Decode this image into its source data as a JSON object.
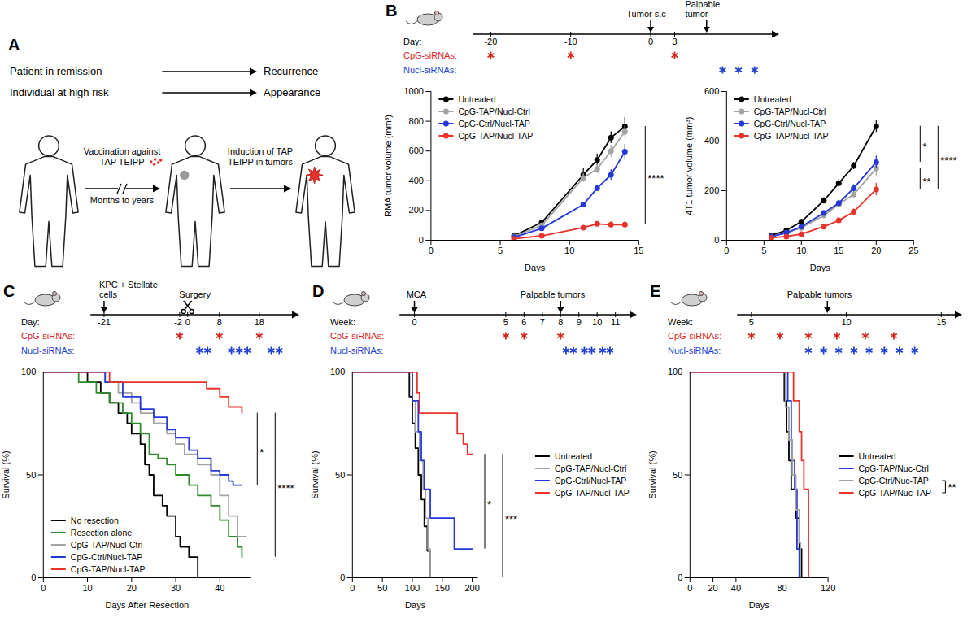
{
  "diagram": {
    "letter": "A",
    "transitions": [
      {
        "from": "Patient in remission",
        "to": "Recurrence"
      },
      {
        "from": "Individual at high risk",
        "to": "Appearance"
      }
    ],
    "steps": [
      "Vaccination against TAP TEIPP",
      "Induction of TAP TEIPP in tumors"
    ],
    "interval": "Months to years"
  },
  "timelines": [
    {
      "panel": "B",
      "unit": "Day:",
      "ticks": [
        -20,
        -10,
        0,
        3
      ],
      "events": [
        {
          "label": "Tumor s.c",
          "at": 0,
          "marker": "arrow"
        },
        {
          "label": "Palpable tumor",
          "at": 7,
          "marker": "arrow"
        }
      ],
      "rows": [
        {
          "label": "CpG-siRNAs:",
          "color": "#d7261e",
          "at": [
            -20,
            -10,
            3
          ]
        },
        {
          "label": "Nucl-siRNAs:",
          "color": "#1f3fd1",
          "at": [
            9,
            11,
            13
          ]
        }
      ]
    },
    {
      "panel": "C",
      "unit": "Day:",
      "ticks": [
        -21,
        -2,
        0,
        8,
        18
      ],
      "events": [
        {
          "label": "KPC + Stellate cells",
          "at": -21,
          "marker": "arrow"
        },
        {
          "label": "Surgery",
          "at": 0,
          "marker": "scissors"
        }
      ],
      "rows": [
        {
          "label": "CpG-siRNAs:",
          "color": "#d7261e",
          "at": [
            -2,
            8,
            18
          ]
        },
        {
          "label": "Nucl-siRNAs:",
          "color": "#1f3fd1",
          "at": [
            3,
            5,
            11,
            13,
            15,
            21,
            23
          ]
        }
      ]
    },
    {
      "panel": "D",
      "unit": "Week:",
      "ticks": [
        0,
        5,
        6,
        7,
        8,
        9,
        10,
        11
      ],
      "events": [
        {
          "label": "MCA",
          "at": 0,
          "marker": "arrow"
        },
        {
          "label": "Palpable tumors",
          "at": 8,
          "marker": "arrow"
        }
      ],
      "rows": [
        {
          "label": "CpG-siRNAs:",
          "color": "#d7261e",
          "at": [
            5,
            6,
            8
          ]
        },
        {
          "label": "Nucl-siRNAs:",
          "color": "#1f3fd1",
          "at": [
            8.3,
            8.7,
            9.3,
            9.7,
            10.3,
            10.7
          ]
        }
      ]
    },
    {
      "panel": "E",
      "unit": "Week:",
      "ticks": [
        5,
        10,
        15
      ],
      "events": [
        {
          "label": "Palpable tumors",
          "at": 9,
          "marker": "arrow"
        }
      ],
      "rows": [
        {
          "label": "CpG-siRNAs:",
          "color": "#d7261e",
          "at": [
            5,
            6.5,
            8,
            9.5,
            11,
            12.5
          ]
        },
        {
          "label": "Nucl-siRNAs:",
          "color": "#1f3fd1",
          "at": [
            8,
            8.8,
            9.6,
            10.4,
            11.2,
            12,
            12.8,
            13.6
          ]
        }
      ]
    }
  ],
  "chart_data": [
    {
      "type": "line",
      "xlabel": "Days",
      "ylabel": "RMA tumor volume (mm³)",
      "xlim": [
        0,
        15
      ],
      "xticks": [
        0,
        5,
        10,
        15
      ],
      "ylim": [
        0,
        1000
      ],
      "yticks": [
        0,
        200,
        400,
        600,
        800,
        1000
      ],
      "grid": false,
      "legend": "top-left",
      "marker": "circle",
      "x": [
        6,
        8,
        11,
        12,
        13,
        14
      ],
      "series": [
        {
          "name": "Untreated",
          "color": "#000000",
          "values": [
            30,
            120,
            440,
            540,
            690,
            765
          ],
          "errors": [
            5,
            15,
            45,
            40,
            40,
            60
          ]
        },
        {
          "name": "CpG-TAP/Nucl-Ctrl",
          "color": "#a3a3a3",
          "values": [
            25,
            100,
            420,
            480,
            600,
            730
          ],
          "errors": [
            5,
            10,
            30,
            30,
            40,
            40
          ]
        },
        {
          "name": "CpG-Ctrl/Nucl-TAP",
          "color": "#2338d6",
          "values": [
            20,
            80,
            240,
            350,
            440,
            595
          ],
          "errors": [
            4,
            10,
            15,
            20,
            35,
            50
          ]
        },
        {
          "name": "CpG-TAP/Nucl-TAP",
          "color": "#e8332a",
          "values": [
            10,
            30,
            85,
            110,
            105,
            105
          ],
          "errors": [
            3,
            5,
            10,
            12,
            20,
            20
          ]
        }
      ],
      "annotations": [
        {
          "text": "****",
          "series": [
            "Untreated",
            "CpG-TAP/Nucl-TAP"
          ]
        }
      ]
    },
    {
      "type": "line",
      "xlabel": "Days",
      "ylabel": "4T1 tumor volume (mm³)",
      "xlim": [
        0,
        25
      ],
      "xticks": [
        0,
        5,
        10,
        15,
        20,
        25
      ],
      "ylim": [
        0,
        600
      ],
      "yticks": [
        0,
        200,
        400,
        600
      ],
      "grid": false,
      "legend": "top-left",
      "marker": "circle",
      "x": [
        6,
        8,
        10,
        13,
        15,
        17,
        20
      ],
      "series": [
        {
          "name": "Untreated",
          "color": "#000000",
          "values": [
            20,
            40,
            75,
            160,
            230,
            300,
            460
          ],
          "errors": [
            3,
            5,
            8,
            12,
            15,
            15,
            25
          ]
        },
        {
          "name": "CpG-TAP/Nucl-Ctrl",
          "color": "#a3a3a3",
          "values": [
            15,
            30,
            50,
            100,
            145,
            185,
            290
          ],
          "errors": [
            3,
            4,
            6,
            10,
            12,
            15,
            30
          ]
        },
        {
          "name": "CpG-Ctrl/Nucl-TAP",
          "color": "#2338d6",
          "values": [
            15,
            30,
            55,
            110,
            150,
            210,
            315
          ],
          "errors": [
            3,
            4,
            6,
            10,
            12,
            15,
            25
          ]
        },
        {
          "name": "CpG-TAP/Nucl-TAP",
          "color": "#e8332a",
          "values": [
            10,
            15,
            25,
            55,
            80,
            115,
            205
          ],
          "errors": [
            2,
            3,
            5,
            8,
            10,
            12,
            25
          ]
        }
      ],
      "annotations": [
        {
          "text": "*",
          "series": [
            "Untreated",
            "CpG-Ctrl/Nucl-TAP"
          ]
        },
        {
          "text": "**",
          "series": [
            "CpG-TAP/Nucl-Ctrl",
            "CpG-TAP/Nucl-TAP"
          ]
        },
        {
          "text": "****",
          "series": [
            "Untreated",
            "CpG-TAP/Nucl-TAP"
          ]
        }
      ]
    },
    {
      "type": "step",
      "xlabel": "Days After Resection",
      "ylabel": "Survival (%)",
      "xlim": [
        0,
        47
      ],
      "xticks": [
        0,
        10,
        20,
        30,
        40
      ],
      "ylim": [
        0,
        100
      ],
      "yticks": [
        0,
        50,
        100
      ],
      "grid": false,
      "legend": "bottom-left",
      "series": [
        {
          "name": "No resection",
          "color": "#000000",
          "x": [
            0,
            10,
            13,
            15,
            17,
            19,
            20,
            22,
            23,
            24,
            25,
            27,
            28,
            30,
            31,
            33,
            35
          ],
          "values": [
            100,
            95,
            90,
            85,
            80,
            75,
            70,
            65,
            55,
            50,
            40,
            35,
            30,
            20,
            15,
            10,
            0
          ]
        },
        {
          "name": "Resection alone",
          "color": "#2e8b2e",
          "x": [
            0,
            8,
            12,
            15,
            18,
            20,
            22,
            24,
            26,
            28,
            30,
            33,
            35,
            38,
            40,
            42,
            44,
            45
          ],
          "values": [
            100,
            95,
            90,
            85,
            80,
            75,
            70,
            60,
            58,
            55,
            50,
            45,
            40,
            35,
            28,
            20,
            15,
            10
          ]
        },
        {
          "name": "CpG-TAP/Nucl-Ctrl",
          "color": "#a3a3a3",
          "x": [
            0,
            14,
            17,
            20,
            22,
            25,
            28,
            30,
            32,
            35,
            38,
            40,
            42,
            44,
            46
          ],
          "values": [
            100,
            95,
            90,
            85,
            80,
            75,
            70,
            65,
            60,
            55,
            50,
            40,
            30,
            20,
            20
          ]
        },
        {
          "name": "CpG-Ctrl/Nucl-TAP",
          "color": "#2338d6",
          "x": [
            0,
            14,
            18,
            22,
            25,
            28,
            30,
            33,
            35,
            38,
            40,
            42,
            43,
            45
          ],
          "values": [
            100,
            95,
            88,
            82,
            78,
            72,
            68,
            62,
            58,
            52,
            50,
            47,
            45,
            45
          ]
        },
        {
          "name": "CpG-TAP/Nucl-TAP",
          "color": "#e8332a",
          "x": [
            0,
            15,
            37,
            40,
            42,
            45
          ],
          "values": [
            100,
            95,
            92,
            88,
            83,
            80
          ]
        }
      ],
      "annotations": [
        {
          "text": "*",
          "series": [
            "CpG-Ctrl/Nucl-TAP",
            "CpG-TAP/Nucl-TAP"
          ]
        },
        {
          "text": "****",
          "series": [
            "Resection alone",
            "CpG-TAP/Nucl-TAP"
          ]
        }
      ]
    },
    {
      "type": "step",
      "xlabel": "Days",
      "ylabel": "Survival (%)",
      "xlim": [
        0,
        210
      ],
      "xticks": [
        0,
        50,
        100,
        150,
        200
      ],
      "ylim": [
        0,
        100
      ],
      "yticks": [
        0,
        50,
        100
      ],
      "grid": false,
      "legend": "right",
      "series": [
        {
          "name": "Untreated",
          "color": "#000000",
          "x": [
            0,
            95,
            100,
            105,
            110,
            115,
            120,
            125,
            130
          ],
          "values": [
            100,
            88,
            75,
            63,
            50,
            38,
            25,
            13,
            0
          ]
        },
        {
          "name": "CpG-TAP/Nucl-Ctrl",
          "color": "#a3a3a3",
          "x": [
            0,
            100,
            105,
            112,
            118,
            122,
            126,
            130
          ],
          "values": [
            100,
            86,
            71,
            57,
            43,
            29,
            14,
            0
          ]
        },
        {
          "name": "CpG-Ctrl/Nucl-TAP",
          "color": "#2338d6",
          "x": [
            0,
            100,
            110,
            115,
            120,
            130,
            170,
            200
          ],
          "values": [
            100,
            86,
            71,
            57,
            43,
            29,
            14,
            14
          ]
        },
        {
          "name": "CpG-TAP/Nucl-TAP",
          "color": "#e8332a",
          "x": [
            0,
            108,
            112,
            175,
            185,
            192,
            200
          ],
          "values": [
            100,
            90,
            80,
            70,
            65,
            60,
            60
          ]
        }
      ],
      "annotations": [
        {
          "text": "*",
          "series": [
            "CpG-Ctrl/Nucl-TAP",
            "CpG-TAP/Nucl-TAP"
          ]
        },
        {
          "text": "***",
          "series": [
            "Untreated",
            "CpG-TAP/Nucl-TAP"
          ]
        }
      ]
    },
    {
      "type": "step",
      "xlabel": "Days",
      "ylabel": "Survival (%)",
      "xlim": [
        0,
        120
      ],
      "xticks": [
        0,
        20,
        40,
        80,
        120
      ],
      "ylim": [
        0,
        100
      ],
      "yticks": [
        0,
        50,
        100
      ],
      "grid": false,
      "legend": "right",
      "series": [
        {
          "name": "Untreated",
          "color": "#000000",
          "x": [
            0,
            82,
            84,
            86,
            88,
            92,
            95,
            97
          ],
          "values": [
            100,
            86,
            71,
            57,
            43,
            29,
            14,
            0
          ]
        },
        {
          "name": "CpG-TAP/Nuc-Ctrl",
          "color": "#2338d6",
          "x": [
            0,
            85,
            88,
            91,
            93,
            95
          ],
          "values": [
            100,
            86,
            57,
            43,
            14,
            0
          ]
        },
        {
          "name": "CpG-Ctrl/Nuc-TAP",
          "color": "#a3a3a3",
          "x": [
            0,
            83,
            86,
            89,
            92,
            95,
            96
          ],
          "values": [
            100,
            83,
            67,
            50,
            33,
            17,
            0
          ]
        },
        {
          "name": "CpG-TAP/Nuc-TAP",
          "color": "#e8332a",
          "x": [
            0,
            90,
            95,
            97,
            99,
            103
          ],
          "values": [
            100,
            86,
            71,
            57,
            43,
            0
          ]
        }
      ],
      "annotations": [
        {
          "text": "**",
          "series": [
            "CpG-Ctrl/Nuc-TAP",
            "CpG-TAP/Nuc-TAP"
          ]
        }
      ]
    }
  ]
}
